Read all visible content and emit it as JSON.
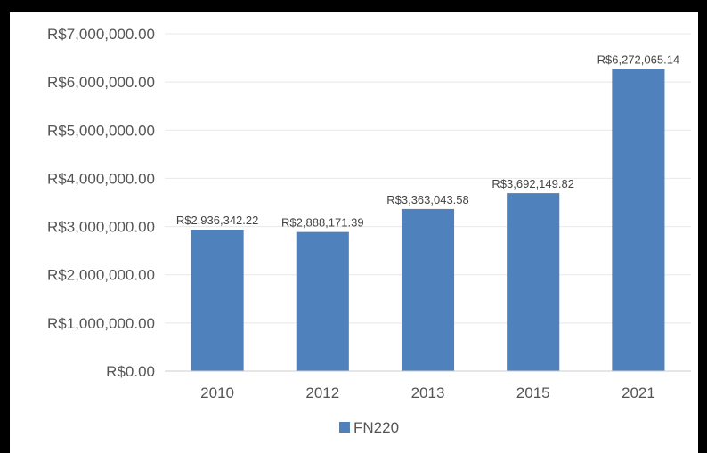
{
  "chart_data": {
    "type": "bar",
    "categories": [
      "2010",
      "2012",
      "2013",
      "2015",
      "2021"
    ],
    "series": [
      {
        "name": "FN220",
        "values": [
          2936342.22,
          2888171.39,
          3363043.58,
          3692149.82,
          6272065.14
        ],
        "data_labels": [
          "R$2,936,342.22",
          "R$2,888,171.39",
          "R$3,363,043.58",
          "R$3,692,149.82",
          "R$6,272,065.14"
        ],
        "color": "#4f81bd"
      }
    ],
    "y_ticks": [
      "R$0.00",
      "R$1,000,000.00",
      "R$2,000,000.00",
      "R$3,000,000.00",
      "R$4,000,000.00",
      "R$5,000,000.00",
      "R$6,000,000.00",
      "R$7,000,000.00"
    ],
    "ylim": [
      0,
      7000000
    ],
    "grid": true,
    "legend_position": "bottom",
    "colors": {
      "bar": "#4f81bd",
      "grid": "#e8e8e8",
      "axis": "#cccccc"
    }
  }
}
